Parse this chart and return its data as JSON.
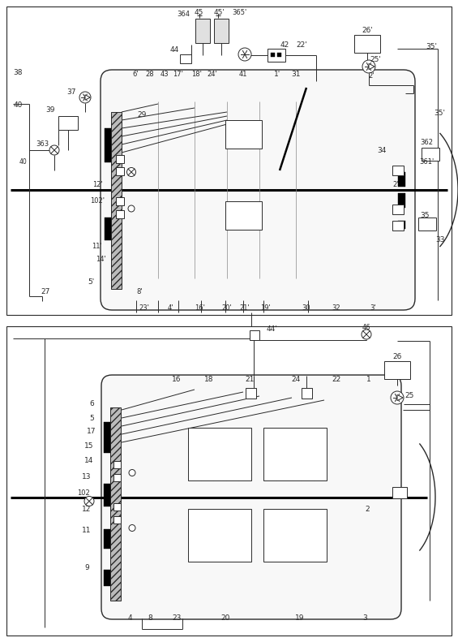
{
  "bg_color": "#ffffff",
  "line_color": "#2a2a2a",
  "fig_width": 5.65,
  "fig_height": 7.91,
  "dpi": 100
}
